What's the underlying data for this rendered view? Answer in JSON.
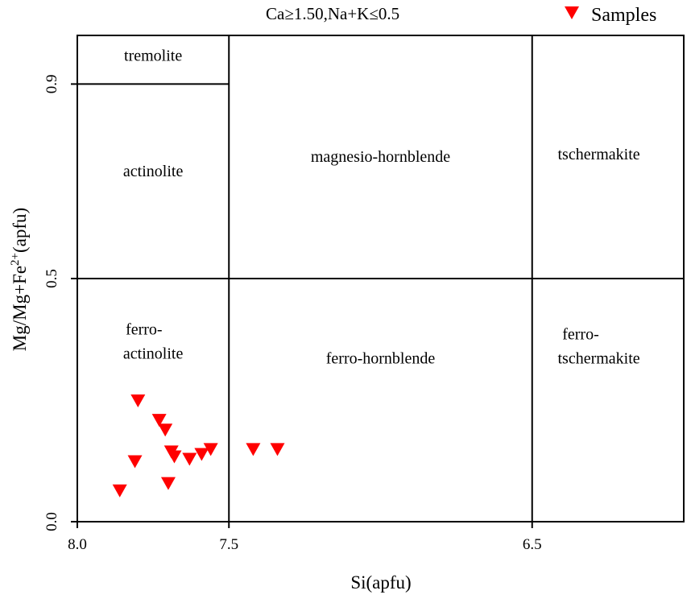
{
  "chart_data": {
    "type": "scatter",
    "title": "Ca≥1.50,Na+K≤0.5",
    "xlabel": "Si(apfu)",
    "ylabel": {
      "base": "Mg/Mg+Fe",
      "superscript": "2+",
      "suffix": "(apfu)"
    },
    "xlim": [
      8.0,
      6.0
    ],
    "ylim": [
      0.0,
      1.0
    ],
    "x_reversed": true,
    "x_ticks": [
      {
        "value": 8.0,
        "label": "8.0"
      },
      {
        "value": 7.5,
        "label": "7.5"
      },
      {
        "value": 6.5,
        "label": "6.5"
      }
    ],
    "y_ticks": [
      {
        "value": 0.0,
        "label": "0.0"
      },
      {
        "value": 0.5,
        "label": "0.5"
      },
      {
        "value": 0.9,
        "label": "0.9"
      }
    ],
    "legend": {
      "position": "top-right",
      "entries": [
        {
          "label": "Samples",
          "color": "#ff0000",
          "marker": "triangle-down"
        }
      ]
    },
    "boundaries": [
      {
        "x1": 7.5,
        "y1": 0.0,
        "x2": 7.5,
        "y2": 1.0
      },
      {
        "x1": 6.5,
        "y1": 0.0,
        "x2": 6.5,
        "y2": 1.0
      },
      {
        "x1": 8.0,
        "y1": 0.5,
        "x2": 6.0,
        "y2": 0.5
      },
      {
        "x1": 8.0,
        "y1": 0.9,
        "x2": 7.5,
        "y2": 0.9
      }
    ],
    "regions": [
      {
        "label": "tremolite",
        "x": 7.75,
        "y": 0.948
      },
      {
        "label": "actinolite",
        "x": 7.75,
        "y": 0.71
      },
      {
        "label": "magnesio-hornblende",
        "x": 7.0,
        "y": 0.74
      },
      {
        "label": "tschermakite",
        "x": 6.28,
        "y": 0.745
      },
      {
        "label": "ferro-",
        "x": 7.78,
        "y": 0.385
      },
      {
        "label": "actinolite",
        "x": 7.75,
        "y": 0.335
      },
      {
        "label": "ferro-hornblende",
        "x": 7.0,
        "y": 0.325
      },
      {
        "label": "ferro-",
        "x": 6.34,
        "y": 0.375
      },
      {
        "label": "tschermakite",
        "x": 6.28,
        "y": 0.325
      }
    ],
    "series": [
      {
        "color": "#ff0000",
        "marker": "triangle-down",
        "points": [
          {
            "x": 7.86,
            "y": 0.065
          },
          {
            "x": 7.8,
            "y": 0.25
          },
          {
            "x": 7.73,
            "y": 0.21
          },
          {
            "x": 7.71,
            "y": 0.19
          },
          {
            "x": 7.69,
            "y": 0.145
          },
          {
            "x": 7.68,
            "y": 0.135
          },
          {
            "x": 7.7,
            "y": 0.08
          },
          {
            "x": 7.81,
            "y": 0.125
          },
          {
            "x": 7.63,
            "y": 0.13
          },
          {
            "x": 7.59,
            "y": 0.14
          },
          {
            "x": 7.56,
            "y": 0.15
          },
          {
            "x": 7.42,
            "y": 0.15
          },
          {
            "x": 7.34,
            "y": 0.15
          }
        ]
      }
    ]
  }
}
